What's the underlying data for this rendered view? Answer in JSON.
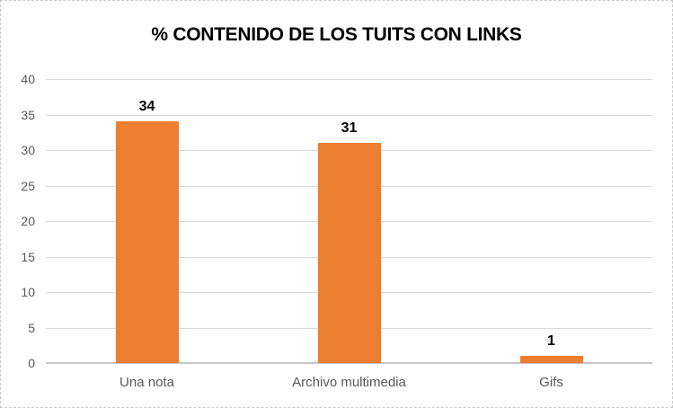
{
  "chart_data": {
    "type": "bar",
    "title": "% CONTENIDO DE LOS TUITS CON LINKS",
    "categories": [
      "Una nota",
      "Archivo multimedia",
      "Gifs"
    ],
    "values": [
      34,
      31,
      1
    ],
    "value_labels": [
      "34",
      "31",
      "1"
    ],
    "xlabel": "",
    "ylabel": "",
    "ylim": [
      0,
      40
    ],
    "ytick_step": 5,
    "yticks": [
      "0",
      "5",
      "10",
      "15",
      "20",
      "25",
      "30",
      "35",
      "40"
    ],
    "grid": true,
    "legend": false,
    "colors": {
      "bar": "#ED7D31",
      "axis_text": "#595959",
      "gridline": "#D9D9D9",
      "axis_line": "#C6C6C6",
      "title_text": "#000000",
      "value_label_text": "#000000",
      "background": "#FFFFFF",
      "frame_border": "#C9C9C9"
    }
  }
}
